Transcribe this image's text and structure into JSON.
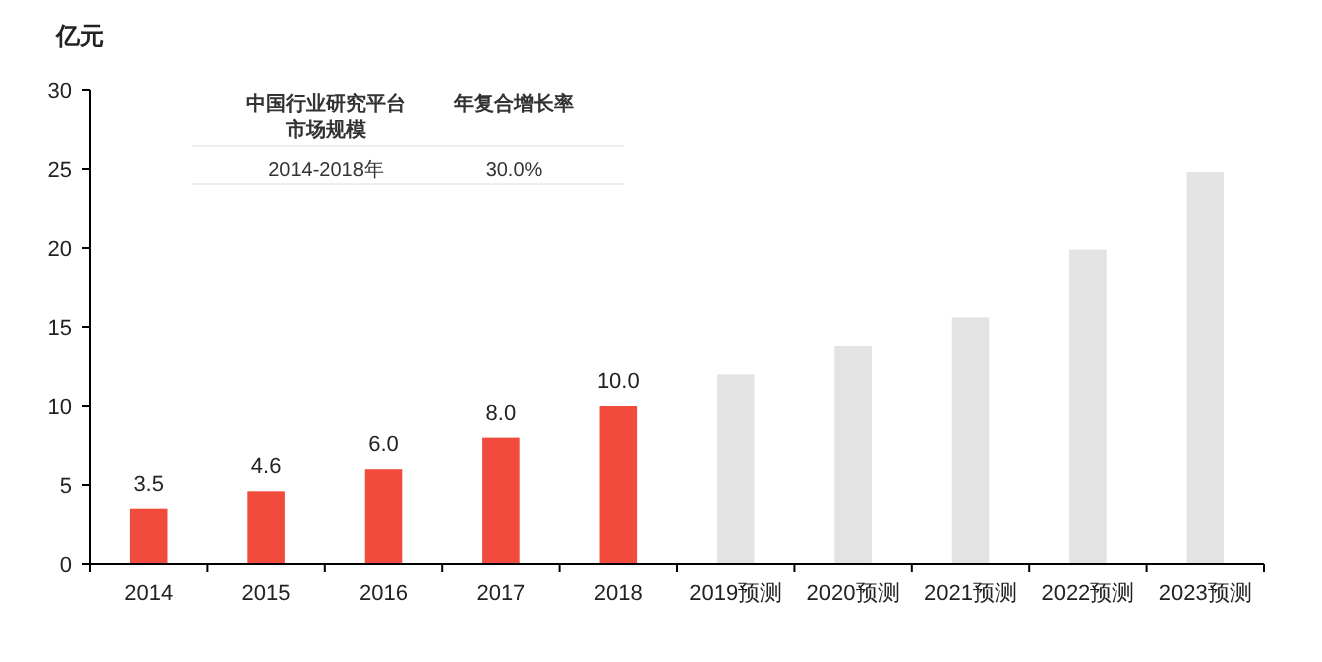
{
  "chart_data": {
    "type": "bar",
    "ylabel": "亿元",
    "categories": [
      "2014",
      "2015",
      "2016",
      "2017",
      "2018",
      "2019预测",
      "2020预测",
      "2021预测",
      "2022预测",
      "2023预测"
    ],
    "values": [
      3.5,
      4.6,
      6.0,
      8.0,
      10.0,
      12.0,
      13.8,
      15.6,
      19.9,
      24.8
    ],
    "colors": [
      "#f04b3c",
      "#f04b3c",
      "#f04b3c",
      "#f04b3c",
      "#f04b3c",
      "#e3e3e3",
      "#e3e3e3",
      "#e3e3e3",
      "#e3e3e3",
      "#e3e3e3"
    ],
    "value_labels": [
      "3.5",
      "4.6",
      "6.0",
      "8.0",
      "10.0",
      null,
      null,
      null,
      null,
      null
    ],
    "ylim": [
      0,
      30
    ],
    "yticks": [
      0,
      5,
      10,
      15,
      20,
      25,
      30
    ],
    "grid": false,
    "annotations": [
      "中国行业研究平台市场规模",
      "年复合增长率",
      "2014-2018年",
      "30.0%"
    ]
  }
}
